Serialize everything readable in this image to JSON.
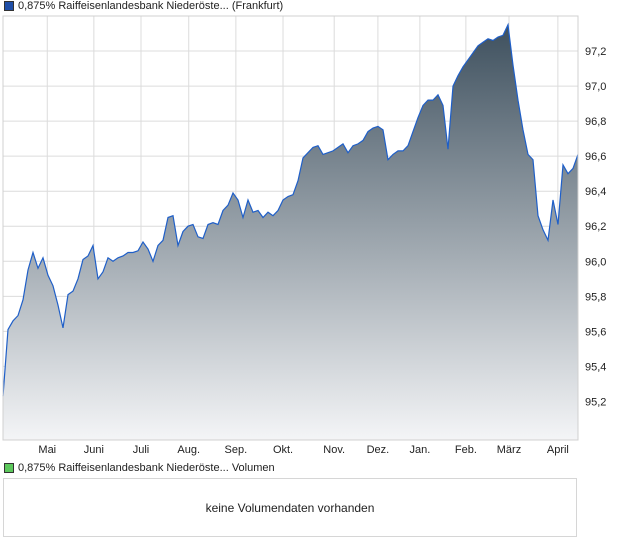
{
  "price_legend": {
    "label": "0,875% Raiffeisenlandesbank Niederöste... (Frankfurt)",
    "color": "#1f4fa8"
  },
  "volume_legend": {
    "label": "0,875% Raiffeisenlandesbank Niederöste... Volumen",
    "color": "#5cc85c"
  },
  "volume_panel": {
    "message": "keine Volumendaten vorhanden"
  },
  "chart_data": {
    "type": "area",
    "title": "0,875% Raiffeisenlandesbank Niederöste... (Frankfurt)",
    "xlabel": "",
    "ylabel": "",
    "ylim": [
      94.98,
      97.4
    ],
    "grid": true,
    "line_color": "#1f5fc8",
    "fill_top": "#3e505e",
    "fill_bottom": "#f4f5f7",
    "y_ticks": [
      95.2,
      95.4,
      95.6,
      95.8,
      96.0,
      96.2,
      96.4,
      96.6,
      96.8,
      97.0,
      97.2
    ],
    "y_tick_labels": [
      "95,2",
      "95,4",
      "95,6",
      "95,8",
      "96,0",
      "96,2",
      "96,4",
      "96,6",
      "96,8",
      "97,0",
      "97,2"
    ],
    "x_ticks": [
      {
        "label": "Mai",
        "pos": 0.077
      },
      {
        "label": "Juni",
        "pos": 0.158
      },
      {
        "label": "Juli",
        "pos": 0.24
      },
      {
        "label": "Aug.",
        "pos": 0.323
      },
      {
        "label": "Sep.",
        "pos": 0.405
      },
      {
        "label": "Okt.",
        "pos": 0.487
      },
      {
        "label": "Nov.",
        "pos": 0.576
      },
      {
        "label": "Dez.",
        "pos": 0.652
      },
      {
        "label": "Jan.",
        "pos": 0.725
      },
      {
        "label": "Feb.",
        "pos": 0.805
      },
      {
        "label": "März",
        "pos": 0.88
      },
      {
        "label": "April",
        "pos": 0.965
      }
    ],
    "values": [
      95.23,
      95.61,
      95.66,
      95.69,
      95.78,
      95.95,
      96.05,
      95.96,
      96.02,
      95.92,
      95.86,
      95.75,
      95.62,
      95.81,
      95.83,
      95.9,
      96.01,
      96.03,
      96.09,
      95.9,
      95.94,
      96.02,
      96.0,
      96.02,
      96.03,
      96.05,
      96.05,
      96.06,
      96.11,
      96.07,
      96.0,
      96.09,
      96.12,
      96.25,
      96.26,
      96.09,
      96.17,
      96.2,
      96.21,
      96.14,
      96.13,
      96.21,
      96.22,
      96.21,
      96.29,
      96.32,
      96.39,
      96.35,
      96.25,
      96.35,
      96.28,
      96.29,
      96.25,
      96.28,
      96.26,
      96.29,
      96.35,
      96.37,
      96.38,
      96.46,
      96.59,
      96.62,
      96.65,
      96.66,
      96.61,
      96.62,
      96.63,
      96.65,
      96.67,
      96.62,
      96.66,
      96.67,
      96.69,
      96.74,
      96.76,
      96.77,
      96.75,
      96.58,
      96.61,
      96.63,
      96.63,
      96.66,
      96.74,
      96.82,
      96.89,
      96.92,
      96.92,
      96.95,
      96.89,
      96.64,
      97.0,
      97.06,
      97.11,
      97.15,
      97.19,
      97.23,
      97.25,
      97.27,
      97.26,
      97.28,
      97.29,
      97.35,
      97.12,
      96.92,
      96.75,
      96.61,
      96.58,
      96.26,
      96.18,
      96.12,
      96.35,
      96.21,
      96.55,
      96.5,
      96.53,
      96.61
    ]
  }
}
